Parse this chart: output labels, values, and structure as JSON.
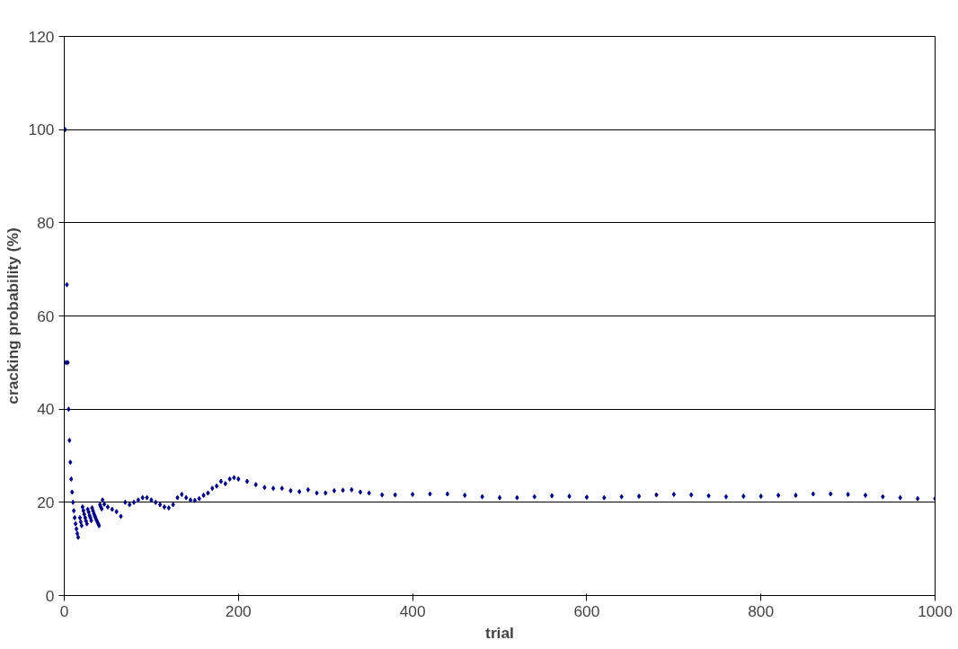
{
  "chart_data": {
    "type": "scatter",
    "xlabel": "trial",
    "ylabel": "cracking probability (%)",
    "x": [
      1,
      2,
      3,
      4,
      5,
      6,
      7,
      8,
      9,
      10,
      11,
      12,
      13,
      14,
      15,
      16,
      18,
      19,
      20,
      21,
      22,
      23,
      24,
      25,
      26,
      27,
      28,
      29,
      30,
      31,
      32,
      33,
      34,
      35,
      36,
      37,
      38,
      39,
      40,
      41,
      42,
      43,
      44,
      46,
      50,
      55,
      60,
      65,
      70,
      75,
      80,
      85,
      90,
      95,
      100,
      105,
      110,
      115,
      120,
      125,
      130,
      135,
      140,
      145,
      150,
      155,
      160,
      165,
      170,
      175,
      180,
      185,
      190,
      195,
      200,
      210,
      220,
      230,
      240,
      250,
      260,
      270,
      280,
      290,
      300,
      310,
      320,
      330,
      340,
      350,
      365,
      380,
      400,
      420,
      440,
      460,
      480,
      500,
      520,
      540,
      560,
      580,
      600,
      620,
      640,
      660,
      680,
      700,
      720,
      740,
      760,
      780,
      800,
      820,
      840,
      860,
      880,
      900,
      920,
      940,
      960,
      980,
      1000
    ],
    "values": [
      100,
      50,
      66.7,
      50,
      40,
      33.3,
      28.6,
      25,
      22.2,
      20,
      18.2,
      16.7,
      15.4,
      14.3,
      13.3,
      12.5,
      16.7,
      15.8,
      15,
      19,
      18.2,
      17.4,
      16.7,
      16,
      15.4,
      18.5,
      17.9,
      17.2,
      16.7,
      16.1,
      18.8,
      18.2,
      17.6,
      17.1,
      16.7,
      16.2,
      15.8,
      15.4,
      15,
      19.5,
      19,
      18.6,
      20.5,
      19.6,
      19,
      18.5,
      18,
      17,
      20,
      19.5,
      20,
      20.5,
      21,
      21,
      20.5,
      20,
      19.5,
      19,
      18.8,
      19.5,
      21,
      21.7,
      21,
      20.5,
      20.4,
      20.8,
      21.5,
      22,
      23,
      23.5,
      24.5,
      24,
      25,
      25.3,
      25,
      24.5,
      23.8,
      23.2,
      23,
      23,
      22.5,
      22.3,
      22.7,
      22,
      22,
      22.5,
      22.6,
      22.7,
      22.2,
      22,
      21.6,
      21.6,
      21.7,
      21.8,
      21.8,
      21.5,
      21.2,
      21,
      21,
      21.2,
      21.4,
      21.3,
      21.1,
      21,
      21.2,
      21.3,
      21.6,
      21.7,
      21.6,
      21.4,
      21.2,
      21.3,
      21.3,
      21.5,
      21.5,
      21.8,
      21.8,
      21.7,
      21.5,
      21.2,
      21,
      20.8,
      20.8
    ],
    "color": "#000080",
    "marker": "diamond",
    "xlim": [
      0,
      1000
    ],
    "xticks": [
      0,
      200,
      400,
      600,
      800,
      1000
    ],
    "ylim": [
      0,
      120
    ],
    "yticks": [
      0,
      20,
      40,
      60,
      80,
      100,
      120
    ],
    "grid": "y"
  }
}
